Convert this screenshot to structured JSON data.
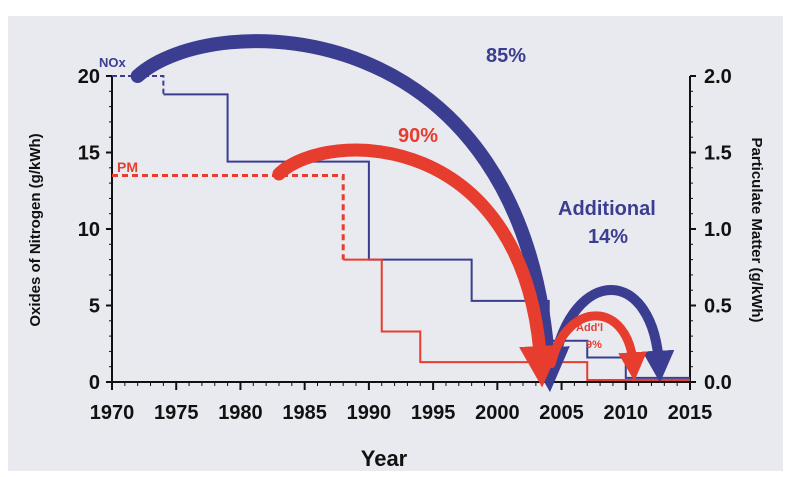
{
  "colors": {
    "nox": "#3b3d91",
    "pm": "#e63d2e",
    "panel": "#e9eaf0",
    "axis": "#111111"
  },
  "chart_data": {
    "type": "line",
    "title": "",
    "xlabel": "Year",
    "ylabel_left": "Oxides of Nitrogen (g/kWh)",
    "ylabel_right": "Particulate Matter (g/kWh)",
    "xlim": [
      1970,
      2015
    ],
    "ylim_left": [
      0,
      20
    ],
    "ylim_right": [
      0,
      2.0
    ],
    "x_ticks": [
      "1970",
      "1975",
      "1980",
      "1985",
      "1990",
      "1995",
      "2000",
      "2005",
      "2010",
      "2015"
    ],
    "y_left_ticks": [
      "0",
      "5",
      "10",
      "15",
      "20"
    ],
    "y_right_ticks": [
      "0.0",
      "0.5",
      "1.0",
      "1.5",
      "2.0"
    ],
    "grid": false,
    "series": [
      {
        "name": "NOx",
        "axis": "left",
        "x": [
          1970,
          1974,
          1974,
          1979,
          1979,
          1990,
          1990,
          1998,
          1998,
          2004,
          2004,
          2007,
          2007,
          2010,
          2010,
          2015
        ],
        "y": [
          20,
          20,
          18.8,
          18.8,
          14.4,
          14.4,
          8,
          8,
          5.3,
          5.3,
          2.7,
          2.7,
          1.6,
          1.6,
          0.27,
          0.27
        ]
      },
      {
        "name": "PM",
        "axis": "right",
        "x": [
          1970,
          1988,
          1988,
          1991,
          1991,
          1994,
          1994,
          2004,
          2004,
          2007,
          2007,
          2015
        ],
        "y": [
          1.35,
          1.35,
          0.8,
          0.8,
          0.33,
          0.33,
          0.13,
          0.13,
          0.13,
          0.13,
          0.013,
          0.013
        ]
      }
    ],
    "annotations": [
      {
        "text": "85%",
        "color": "nox"
      },
      {
        "text": "90%",
        "color": "pm"
      },
      {
        "text": "Additional",
        "color": "nox"
      },
      {
        "text": "14%",
        "color": "nox"
      },
      {
        "text": "Add'l",
        "color": "pm"
      },
      {
        "text": "9%",
        "color": "pm"
      }
    ],
    "arrows": [
      {
        "series": "NOx",
        "from": 1972,
        "to": 2004
      },
      {
        "series": "PM",
        "from": 1983,
        "to": 2003.5
      },
      {
        "series": "NOx",
        "from": 2004,
        "to": 2012.8
      },
      {
        "series": "PM",
        "from": 2004,
        "to": 2010.8
      }
    ]
  }
}
